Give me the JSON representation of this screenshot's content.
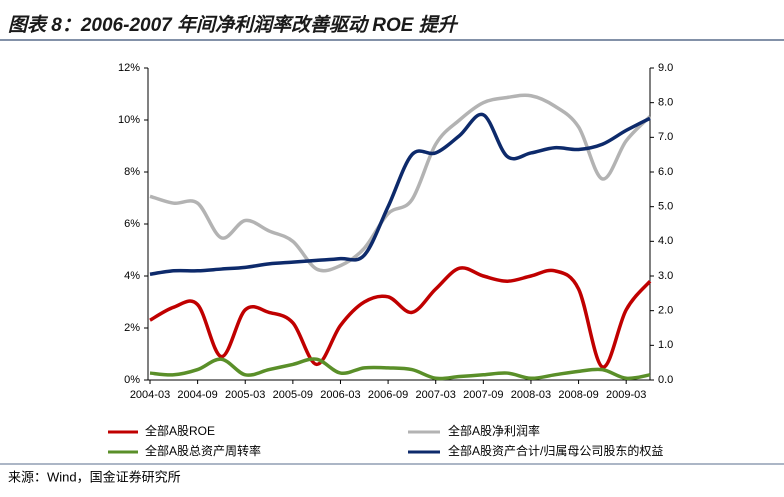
{
  "chart_data": {
    "type": "line",
    "title": "图表 8：2006-2007 年间净利润率改善驱动 ROE 提升",
    "source": "来源：Wind，国金证券研究所",
    "categories": [
      "2004-03",
      null,
      "2004-09",
      null,
      "2005-03",
      null,
      "2005-09",
      null,
      "2006-03",
      null,
      "2006-09",
      null,
      "2007-03",
      null,
      "2007-09",
      null,
      "2008-03",
      null,
      "2008-09",
      null,
      "2009-03",
      null
    ],
    "ylim": [
      0,
      12
    ],
    "yticks": [
      {
        "value": 0,
        "label": "0%"
      },
      {
        "value": 2,
        "label": "2%"
      },
      {
        "value": 4,
        "label": "4%"
      },
      {
        "value": 6,
        "label": "6%"
      },
      {
        "value": 8,
        "label": "8%"
      },
      {
        "value": 10,
        "label": "10%"
      },
      {
        "value": 12,
        "label": "12%"
      }
    ],
    "y2lim": [
      0,
      9
    ],
    "y2ticks": [
      {
        "value": 0,
        "label": "0.0"
      },
      {
        "value": 1,
        "label": "1.0"
      },
      {
        "value": 2,
        "label": "2.0"
      },
      {
        "value": 3,
        "label": "3.0"
      },
      {
        "value": 4,
        "label": "4.0"
      },
      {
        "value": 5,
        "label": "5.0"
      },
      {
        "value": 6,
        "label": "6.0"
      },
      {
        "value": 7,
        "label": "7.0"
      },
      {
        "value": 8,
        "label": "8.0"
      },
      {
        "value": 9,
        "label": "9.0"
      }
    ],
    "series": [
      {
        "name": "全部A股ROE",
        "color": "#c00000",
        "axis": "y",
        "values": [
          2.3,
          2.8,
          2.9,
          0.9,
          2.7,
          2.6,
          2.2,
          0.6,
          2.1,
          3.0,
          3.2,
          2.6,
          3.5,
          4.3,
          4.0,
          3.8,
          4.0,
          4.2,
          3.5,
          0.5,
          2.7,
          3.8
        ]
      },
      {
        "name": "全部A股净利润率",
        "color": "#b3b3b3",
        "axis": "y2",
        "values": [
          5.3,
          5.1,
          5.1,
          4.1,
          4.6,
          4.3,
          4.0,
          3.2,
          3.3,
          3.8,
          4.8,
          5.2,
          6.8,
          7.5,
          8.0,
          8.15,
          8.2,
          7.9,
          7.3,
          5.8,
          6.9,
          7.6
        ]
      },
      {
        "name": "全部A股总资产周转率",
        "color": "#5a8f29",
        "axis": "y2",
        "values": [
          0.2,
          0.15,
          0.3,
          0.6,
          0.15,
          0.3,
          0.45,
          0.6,
          0.2,
          0.35,
          0.35,
          0.3,
          0.05,
          0.1,
          0.15,
          0.2,
          0.05,
          0.15,
          0.25,
          0.3,
          0.05,
          0.15
        ]
      },
      {
        "name": "全部A股资产合计/归属母公司股东的权益",
        "color": "#0d2a6b",
        "axis": "y2",
        "values": [
          3.05,
          3.15,
          3.15,
          3.2,
          3.25,
          3.35,
          3.4,
          3.45,
          3.5,
          3.6,
          5.0,
          6.5,
          6.55,
          7.05,
          7.65,
          6.45,
          6.55,
          6.7,
          6.65,
          6.8,
          7.2,
          7.55
        ]
      }
    ]
  }
}
